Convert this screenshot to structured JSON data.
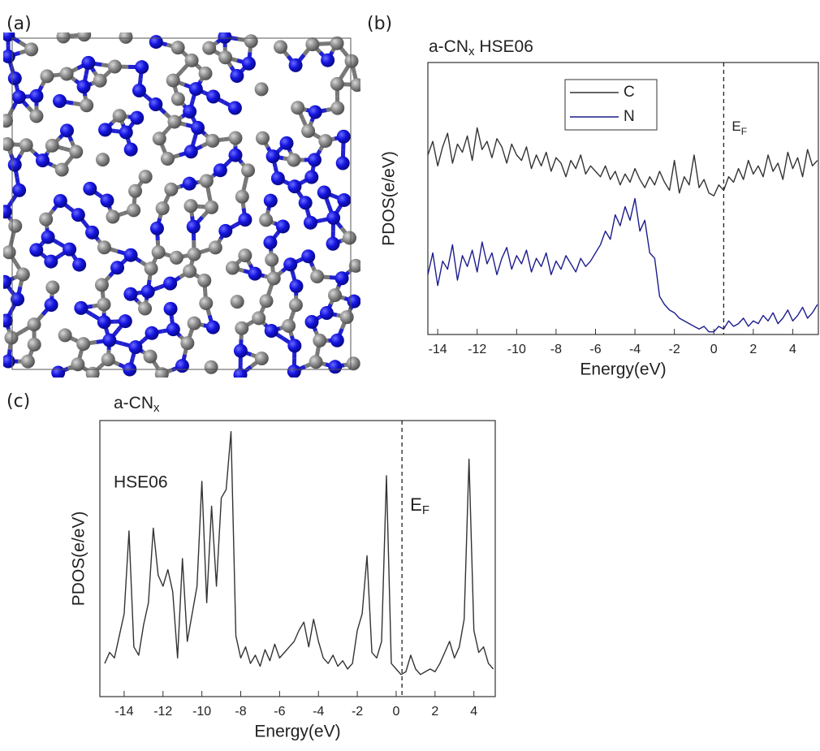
{
  "structure_panel_label": "(a)",
  "chart_data": [
    {
      "type": "line",
      "panel_label": "(b)",
      "title": [
        "a-CN",
        "x",
        " HSE06"
      ],
      "xlabel": "Energy(eV)",
      "ylabel": "PDOS(e/eV)",
      "xlim": [
        -14.5,
        5.3
      ],
      "ylim": [
        0,
        100
      ],
      "xticks": [
        -14,
        -12,
        -10,
        -8,
        -6,
        -4,
        -2,
        0,
        2,
        4
      ],
      "legend": "top-center",
      "fermi_level": {
        "x": 0.5,
        "label": [
          "E",
          "F"
        ],
        "style": "dashed"
      },
      "x": [
        -14.5,
        -14.25,
        -14,
        -13.75,
        -13.5,
        -13.25,
        -13,
        -12.75,
        -12.5,
        -12.25,
        -12,
        -11.75,
        -11.5,
        -11.25,
        -11,
        -10.75,
        -10.5,
        -10.25,
        -10,
        -9.75,
        -9.5,
        -9.25,
        -9,
        -8.75,
        -8.5,
        -8.25,
        -8,
        -7.75,
        -7.5,
        -7.25,
        -7,
        -6.75,
        -6.5,
        -6.25,
        -6,
        -5.75,
        -5.5,
        -5.25,
        -5,
        -4.75,
        -4.5,
        -4.25,
        -4,
        -3.75,
        -3.5,
        -3.25,
        -3,
        -2.75,
        -2.5,
        -2.25,
        -2,
        -1.75,
        -1.5,
        -1.25,
        -1,
        -0.75,
        -0.5,
        -0.25,
        0,
        0.25,
        0.5,
        0.75,
        1,
        1.25,
        1.5,
        1.75,
        2,
        2.25,
        2.5,
        2.75,
        3,
        3.25,
        3.5,
        3.75,
        4,
        4.25,
        4.5,
        4.75,
        5,
        5.25
      ],
      "series": [
        {
          "name": "C",
          "color": "#333333",
          "values": [
            66,
            71,
            62,
            69,
            74,
            63,
            70,
            67,
            73,
            64,
            76,
            68,
            71,
            65,
            72,
            69,
            63,
            70,
            66,
            64,
            69,
            61,
            66,
            62,
            67,
            60,
            65,
            63,
            58,
            64,
            61,
            66,
            59,
            62,
            60,
            58,
            62,
            57,
            60,
            55,
            59,
            56,
            61,
            57,
            54,
            58,
            55,
            60,
            56,
            53,
            64,
            52,
            58,
            55,
            66,
            54,
            57,
            52,
            51,
            55,
            53,
            58,
            56,
            61,
            57,
            64,
            59,
            62,
            58,
            66,
            60,
            63,
            57,
            67,
            61,
            65,
            58,
            68,
            62,
            64
          ]
        },
        {
          "name": "N",
          "color": "#1c1c8e",
          "values": [
            22,
            30,
            18,
            27,
            24,
            33,
            20,
            29,
            25,
            31,
            23,
            34,
            26,
            30,
            22,
            28,
            32,
            24,
            29,
            26,
            31,
            23,
            28,
            25,
            30,
            22,
            27,
            24,
            29,
            26,
            23,
            28,
            25,
            27,
            30,
            33,
            38,
            35,
            44,
            40,
            47,
            42,
            50,
            38,
            42,
            30,
            28,
            14,
            11,
            9,
            8,
            6,
            5,
            4,
            3,
            2,
            3,
            1,
            1,
            3,
            2,
            5,
            3,
            4,
            6,
            3,
            5,
            4,
            7,
            5,
            8,
            4,
            6,
            9,
            5,
            7,
            10,
            6,
            8,
            11
          ]
        }
      ]
    },
    {
      "type": "line",
      "panel_label": "(c)",
      "title": [
        "a-CN",
        "x"
      ],
      "annotation": "HSE06",
      "xlabel": "Energy(eV)",
      "ylabel": "PDOS(e/eV)",
      "xlim": [
        -15.25,
        5.1
      ],
      "ylim": [
        0,
        100
      ],
      "xticks": [
        -14,
        -12,
        -10,
        -8,
        -6,
        -4,
        -2,
        0,
        2,
        4
      ],
      "fermi_level": {
        "x": 0.3,
        "label": [
          "E",
          "F"
        ],
        "style": "dashed"
      },
      "x": [
        -15,
        -14.75,
        -14.5,
        -14.25,
        -14,
        -13.75,
        -13.5,
        -13.25,
        -13,
        -12.75,
        -12.5,
        -12.25,
        -12,
        -11.75,
        -11.5,
        -11.25,
        -11,
        -10.75,
        -10.5,
        -10.25,
        -10,
        -9.75,
        -9.5,
        -9.25,
        -9,
        -8.75,
        -8.5,
        -8.25,
        -8,
        -7.75,
        -7.5,
        -7.25,
        -7,
        -6.75,
        -6.5,
        -6.25,
        -6,
        -5.75,
        -5.5,
        -5.25,
        -5,
        -4.75,
        -4.5,
        -4.25,
        -4,
        -3.75,
        -3.5,
        -3.25,
        -3,
        -2.75,
        -2.5,
        -2.25,
        -2,
        -1.75,
        -1.5,
        -1.25,
        -1,
        -0.75,
        -0.5,
        -0.25,
        0,
        0.25,
        0.5,
        0.75,
        1,
        1.25,
        1.5,
        1.75,
        2,
        2.25,
        2.5,
        2.75,
        3,
        3.25,
        3.5,
        3.75,
        4,
        4.25,
        4.5,
        4.75,
        5
      ],
      "series": [
        {
          "color": "#333333",
          "values": [
            12,
            16,
            14,
            22,
            30,
            60,
            18,
            15,
            26,
            34,
            61,
            44,
            40,
            46,
            38,
            14,
            50,
            20,
            30,
            40,
            78,
            34,
            69,
            40,
            72,
            75,
            96,
            22,
            14,
            18,
            12,
            15,
            11,
            17,
            13,
            19,
            14,
            16,
            18,
            20,
            24,
            27,
            18,
            28,
            20,
            14,
            12,
            15,
            11,
            13,
            10,
            12,
            24,
            30,
            51,
            16,
            14,
            20,
            80,
            12,
            10,
            8,
            9,
            15,
            10,
            8,
            9,
            10,
            9,
            12,
            16,
            20,
            14,
            18,
            28,
            86,
            24,
            16,
            18,
            12,
            10
          ]
        }
      ]
    }
  ]
}
